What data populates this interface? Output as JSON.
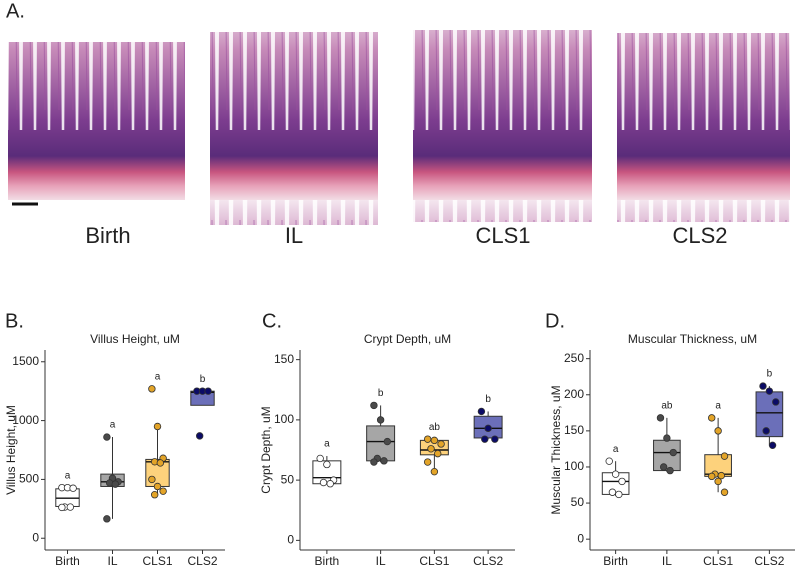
{
  "panel_a": {
    "label": "A.",
    "images": [
      "Birth",
      "IL",
      "CLS1",
      "CLS2"
    ]
  },
  "chart_data": [
    {
      "type": "box",
      "panel": "B.",
      "title": "Villus Height, uM",
      "ylabel": "Villus Height, uM",
      "categories": [
        "Birth",
        "IL",
        "CLS1",
        "CLS2"
      ],
      "colors": [
        "#ffffff",
        "#a6a6a6",
        "#fdd27c",
        "#6b6fb9"
      ],
      "point_colors": [
        "#ffffff",
        "#4a4a4a",
        "#e3a428",
        "#0b0b66"
      ],
      "ylim": [
        -100,
        1600
      ],
      "yticks": [
        0,
        500,
        1000,
        1500
      ],
      "boxes": [
        {
          "whisker_low": 260,
          "q1": 270,
          "median": 340,
          "q3": 420,
          "whisker_high": 430,
          "points": [
            430,
            430,
            425,
            265,
            265,
            262
          ]
        },
        {
          "whisker_low": 165,
          "q1": 440,
          "median": 480,
          "q3": 545,
          "whisker_high": 860,
          "points": [
            860,
            510,
            480,
            470,
            460,
            165
          ]
        },
        {
          "whisker_low": 370,
          "q1": 440,
          "median": 650,
          "q3": 670,
          "whisker_high": 950,
          "points": [
            1270,
            950,
            680,
            650,
            640,
            500,
            440,
            400,
            370
          ]
        },
        {
          "whisker_low": 1130,
          "q1": 1130,
          "median": 1240,
          "q3": 1250,
          "whisker_high": 1250,
          "points": [
            1250,
            1250,
            1250,
            870
          ]
        }
      ],
      "letters": [
        "a",
        "a",
        "a",
        "b"
      ]
    },
    {
      "type": "box",
      "panel": "C.",
      "title": "Crypt Depth, uM",
      "ylabel": "Crypt Depth, uM",
      "categories": [
        "Birth",
        "IL",
        "CLS1",
        "CLS2"
      ],
      "colors": [
        "#ffffff",
        "#a6a6a6",
        "#fdd27c",
        "#6b6fb9"
      ],
      "point_colors": [
        "#ffffff",
        "#4a4a4a",
        "#e3a428",
        "#0b0b66"
      ],
      "ylim": [
        -8,
        158
      ],
      "yticks": [
        0,
        50,
        100,
        150
      ],
      "boxes": [
        {
          "whisker_low": 47,
          "q1": 47,
          "median": 52,
          "q3": 66,
          "whisker_high": 70,
          "points": [
            68,
            63,
            50,
            48,
            47
          ]
        },
        {
          "whisker_low": 65,
          "q1": 66,
          "median": 82,
          "q3": 95,
          "whisker_high": 112,
          "points": [
            112,
            100,
            82,
            68,
            66,
            65
          ]
        },
        {
          "whisker_low": 57,
          "q1": 71,
          "median": 75,
          "q3": 83,
          "whisker_high": 84,
          "points": [
            84,
            83,
            80,
            76,
            72,
            65,
            57
          ]
        },
        {
          "whisker_low": 84,
          "q1": 85,
          "median": 93,
          "q3": 103,
          "whisker_high": 107,
          "points": [
            107,
            93,
            84,
            84
          ]
        }
      ],
      "letters": [
        "a",
        "b",
        "ab",
        "b"
      ]
    },
    {
      "type": "box",
      "panel": "D.",
      "title": "Muscular Thickness, uM",
      "ylabel": "Muscular Thickness, uM",
      "categories": [
        "Birth",
        "IL",
        "CLS1",
        "CLS2"
      ],
      "colors": [
        "#ffffff",
        "#a6a6a6",
        "#fdd27c",
        "#6b6fb9"
      ],
      "point_colors": [
        "#ffffff",
        "#4a4a4a",
        "#e3a428",
        "#0b0b66"
      ],
      "ylim": [
        -15,
        262
      ],
      "yticks": [
        0,
        50,
        100,
        150,
        200,
        250
      ],
      "boxes": [
        {
          "whisker_low": 60,
          "q1": 62,
          "median": 80,
          "q3": 92,
          "whisker_high": 108,
          "points": [
            108,
            90,
            80,
            65,
            62
          ]
        },
        {
          "whisker_low": 93,
          "q1": 95,
          "median": 120,
          "q3": 137,
          "whisker_high": 168,
          "points": [
            168,
            140,
            120,
            100,
            95
          ]
        },
        {
          "whisker_low": 65,
          "q1": 87,
          "median": 90,
          "q3": 117,
          "whisker_high": 168,
          "points": [
            168,
            150,
            115,
            90,
            88,
            87,
            80,
            65
          ]
        },
        {
          "whisker_low": 130,
          "q1": 142,
          "median": 175,
          "q3": 204,
          "whisker_high": 212,
          "points": [
            212,
            205,
            190,
            150,
            130
          ]
        }
      ],
      "letters": [
        "a",
        "ab",
        "a",
        "b"
      ]
    }
  ]
}
